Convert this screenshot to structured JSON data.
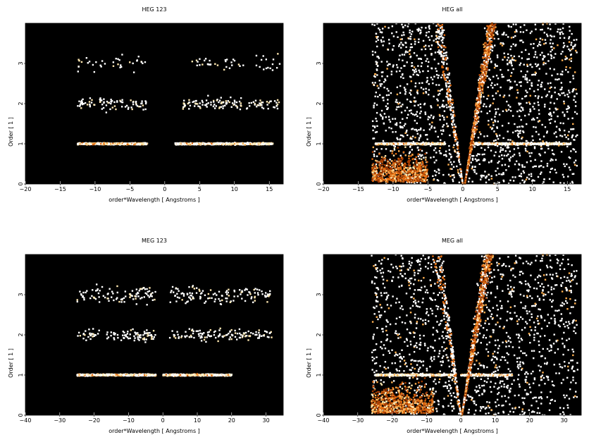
{
  "colors": {
    "background": "#000000",
    "hot": [
      "#5a1500",
      "#a33a00",
      "#e06a10",
      "#ffb050",
      "#ffe8b0",
      "#ffffff"
    ]
  },
  "chart_data": [
    {
      "type": "heatmap",
      "title": "HEG 123",
      "xlabel": "order*Wavelength [ Angstroms ]",
      "ylabel": "Order [ 1 ]",
      "xlim": [
        -20,
        17
      ],
      "ylim": [
        0,
        4
      ],
      "xticks": [
        -20,
        -15,
        -10,
        -5,
        0,
        5,
        10,
        15
      ],
      "yticks": [
        0,
        1,
        2,
        3
      ],
      "bands": [
        {
          "order": 1,
          "x_ranges": [
            [
              -12.5,
              -2.5
            ],
            [
              1.5,
              15.5
            ]
          ],
          "intensity": "high"
        },
        {
          "order": 2,
          "x_ranges": [
            [
              -12.5,
              -2.5
            ],
            [
              2.5,
              16.5
            ]
          ],
          "intensity": "low"
        },
        {
          "order": 3,
          "x_ranges": [
            [
              -12.5,
              -2.5
            ],
            [
              3.5,
              16.5
            ]
          ],
          "intensity": "very low"
        }
      ]
    },
    {
      "type": "heatmap",
      "title": "HEG all",
      "xlabel": "order*Wavelength [ Angstroms ]",
      "ylabel": "Order [ 1 ]",
      "xlim": [
        -20,
        17
      ],
      "ylim": [
        0,
        4
      ],
      "xticks": [
        -20,
        -15,
        -10,
        -5,
        0,
        5,
        10,
        15
      ],
      "yticks": [
        0,
        1,
        2,
        3
      ],
      "bands": [
        {
          "order": 1,
          "x_ranges": [
            [
              -12.5,
              -2.5
            ],
            [
              1.5,
              15.5
            ]
          ],
          "intensity": "high"
        }
      ],
      "background_events": "dense, x from -12.5 to 16.5 outside the zero-order wedge"
    },
    {
      "type": "heatmap",
      "title": "MEG 123",
      "xlabel": "order*Wavelength [ Angstroms ]",
      "ylabel": "Order [ 1 ]",
      "xlim": [
        -40,
        35
      ],
      "ylim": [
        0,
        4
      ],
      "xticks": [
        -40,
        -30,
        -20,
        -10,
        0,
        10,
        20,
        30
      ],
      "yticks": [
        0,
        1,
        2,
        3
      ],
      "bands": [
        {
          "order": 1,
          "x_ranges": [
            [
              -25,
              -2
            ],
            [
              0,
              20
            ]
          ],
          "intensity": "high"
        },
        {
          "order": 2,
          "x_ranges": [
            [
              -25,
              -2
            ],
            [
              2,
              32
            ]
          ],
          "intensity": "low"
        },
        {
          "order": 3,
          "x_ranges": [
            [
              -25,
              -2
            ],
            [
              2,
              32
            ]
          ],
          "intensity": "low"
        }
      ]
    },
    {
      "type": "heatmap",
      "title": "MEG all",
      "xlabel": "order*Wavelength [ Angstroms ]",
      "ylabel": "Order [ 1 ]",
      "xlim": [
        -40,
        35
      ],
      "ylim": [
        0,
        4
      ],
      "xticks": [
        -40,
        -30,
        -20,
        -10,
        0,
        10,
        20,
        30
      ],
      "yticks": [
        0,
        1,
        2,
        3
      ],
      "bands": [
        {
          "order": 1,
          "x_ranges": [
            [
              -25,
              -2
            ],
            [
              0,
              15
            ]
          ],
          "intensity": "high"
        }
      ],
      "background_events": "dense, x from -26 to 34 outside the zero-order wedge"
    }
  ]
}
